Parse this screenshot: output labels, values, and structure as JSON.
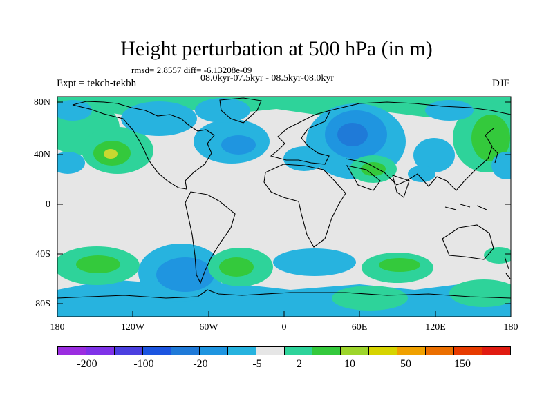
{
  "title": "Height perturbation at 500 hPa (in m)",
  "stats": "rmsd= 2.8557 diff= -6.13208e-09",
  "period": "08.0kyr-07.5kyr - 08.5kyr-08.0kyr",
  "experiment": "Expt = tekch-tekbh",
  "season": "DJF",
  "lat_ticks": [
    "80N",
    "40N",
    "0",
    "40S",
    "80S"
  ],
  "lon_ticks": [
    "180",
    "120W",
    "60W",
    "0",
    "60E",
    "120E",
    "180"
  ],
  "colorbar": {
    "colors": [
      "#9b2de0",
      "#7f32e8",
      "#4b3fe0",
      "#1c55e0",
      "#1f7ad8",
      "#1f95e0",
      "#27b3df",
      "#e6e6e6",
      "#2ed39a",
      "#34c93c",
      "#9dd52b",
      "#d7d400",
      "#f0a100",
      "#eb6f00",
      "#e73b00",
      "#e11b11"
    ],
    "labels": [
      "-200",
      "-100",
      "-20",
      "-5",
      "2",
      "10",
      "50",
      "150"
    ]
  },
  "map_colors": {
    "background": "#e6e6e6",
    "light_blue": "#27b3df",
    "mid_blue": "#1f95e0",
    "dark_blue": "#1f7ad8",
    "teal_green": "#2ed39a",
    "green": "#34c93c",
    "yellow_green": "#c7d830",
    "coast": "#000000"
  }
}
